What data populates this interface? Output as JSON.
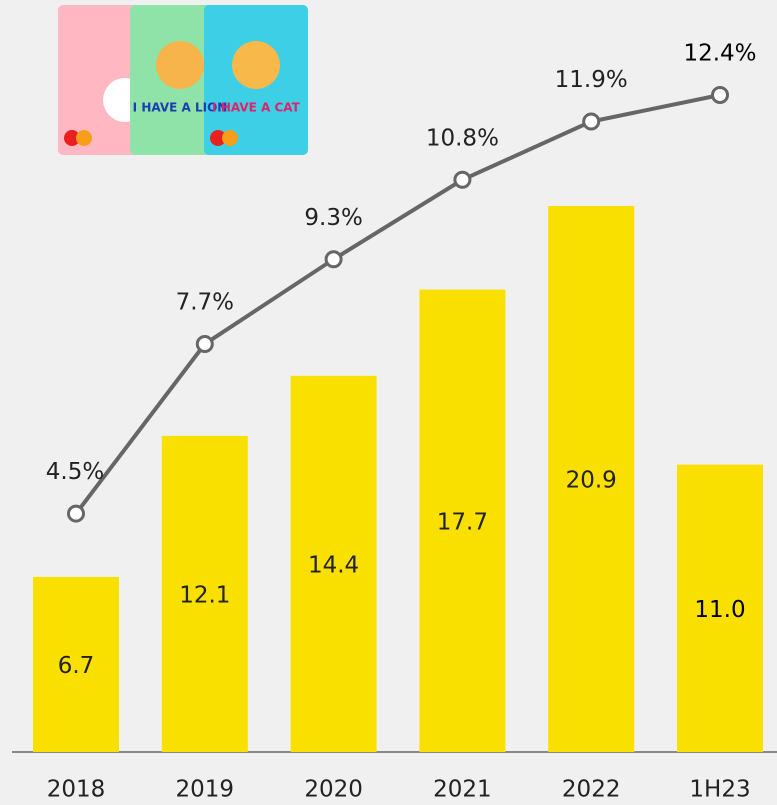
{
  "chart_data": {
    "type": "bar-line",
    "categories": [
      "2018",
      "2019",
      "2020",
      "2021",
      "2022",
      "1H23"
    ],
    "series": [
      {
        "type": "bar",
        "color": "#f9e000",
        "values": [
          6.7,
          12.1,
          14.4,
          17.7,
          20.9,
          11.0
        ],
        "value_labels": [
          "6.7",
          "12.1",
          "14.4",
          "17.7",
          "20.9",
          "11.0"
        ]
      },
      {
        "type": "line",
        "color": "#666666",
        "values": [
          4.5,
          7.7,
          9.3,
          10.8,
          11.9,
          12.4
        ],
        "value_labels": [
          "4.5%",
          "7.7%",
          "9.3%",
          "10.8%",
          "11.9%",
          "12.4%"
        ]
      }
    ],
    "card_labels": [
      "I HAVE A LION",
      "I HAVE A CAT"
    ]
  }
}
